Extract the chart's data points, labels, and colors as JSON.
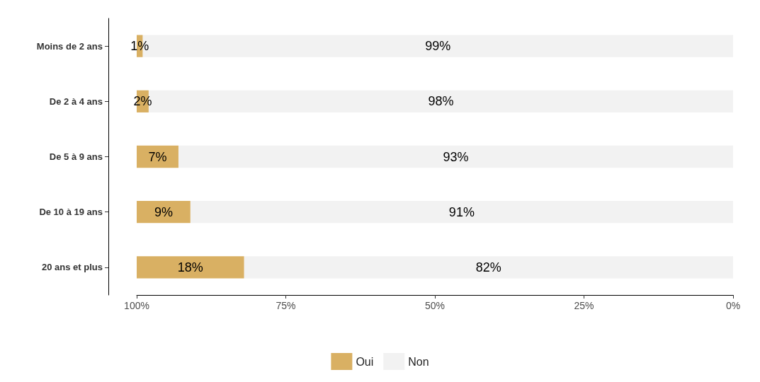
{
  "chart_data": {
    "type": "bar",
    "orientation": "horizontal",
    "stacked": true,
    "categories": [
      "Moins de 2 ans",
      "De 2 à 4 ans",
      "De 5 à 9 ans",
      "De 10 à 19 ans",
      "20 ans et plus"
    ],
    "series": [
      {
        "name": "Non",
        "color": "#f2f2f2",
        "values": [
          99,
          98,
          93,
          91,
          82
        ],
        "value_labels": [
          "99%",
          "98%",
          "93%",
          "91%",
          "82%"
        ]
      },
      {
        "name": "Oui",
        "color": "#d9b063",
        "values": [
          1,
          2,
          7,
          9,
          18
        ],
        "value_labels": [
          "1%",
          "2%",
          "7%",
          "9%",
          "18%"
        ]
      }
    ],
    "xlim": [
      100,
      0
    ],
    "xticks": [
      {
        "value": 100,
        "label": "100%"
      },
      {
        "value": 75,
        "label": "75%"
      },
      {
        "value": 50,
        "label": "50%"
      },
      {
        "value": 25,
        "label": "25%"
      },
      {
        "value": 0,
        "label": "0%"
      }
    ],
    "grid": false,
    "legend": "bottom"
  }
}
